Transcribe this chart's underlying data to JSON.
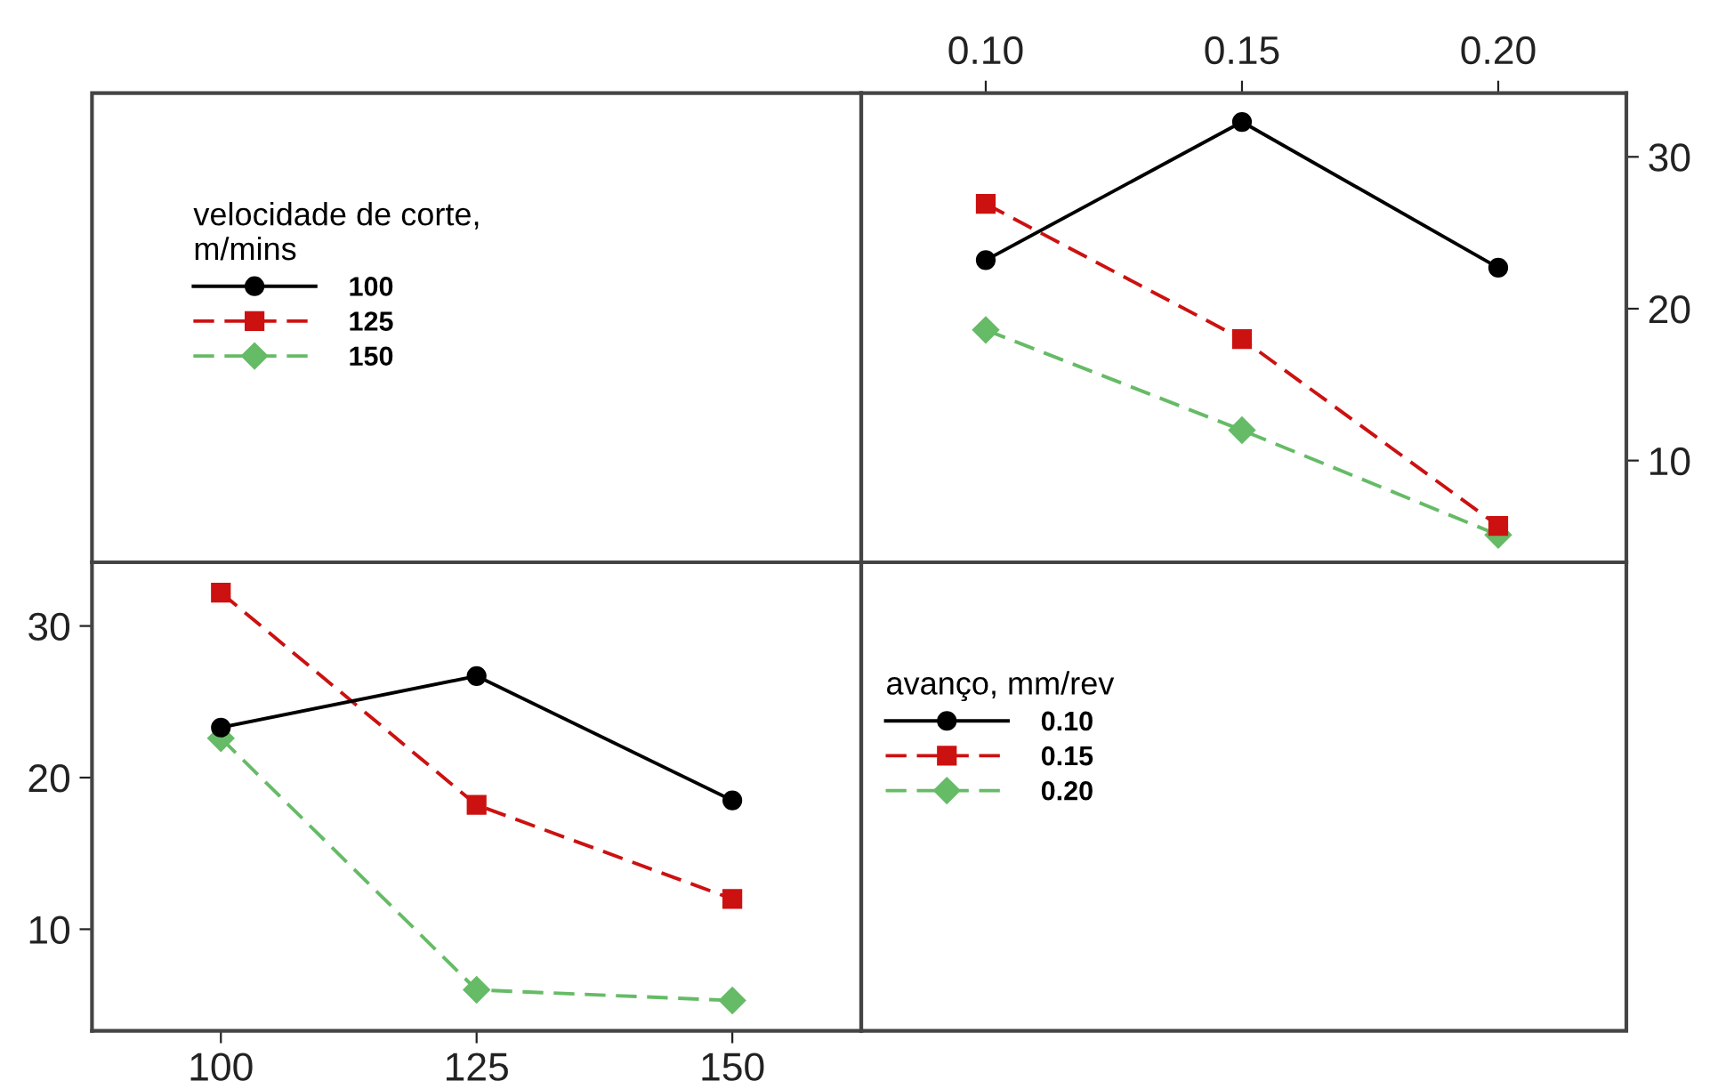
{
  "chart_data": [
    {
      "type": "line",
      "legend_title": "velocidade de corte,\nm/mins",
      "legend": "left",
      "grid": false,
      "x": [
        0.1,
        0.15,
        0.2
      ],
      "xlim": [
        0.0757,
        0.225
      ],
      "xticks": [
        {
          "value": 0.1,
          "label": "0.10"
        },
        {
          "value": 0.15,
          "label": "0.15"
        },
        {
          "value": 0.2,
          "label": "0.20"
        }
      ],
      "ylim": [
        3.3,
        34.2
      ],
      "yticks": [
        10,
        20,
        30
      ],
      "series": [
        {
          "name": "100",
          "color": "#000000",
          "marker": "circle",
          "line_style": "solid",
          "values": [
            23.2,
            32.3,
            22.7
          ]
        },
        {
          "name": "125",
          "color": "#cc1111",
          "marker": "square",
          "line_style": "dashed",
          "values": [
            26.9,
            18.0,
            5.7
          ]
        },
        {
          "name": "150",
          "color": "#66bb66",
          "marker": "diamond",
          "line_style": "dashed",
          "values": [
            18.6,
            12.0,
            5.1
          ]
        }
      ]
    },
    {
      "type": "line",
      "legend_title": "avanço, mm/rev",
      "legend": "right",
      "grid": false,
      "x": [
        100,
        125,
        150
      ],
      "xlim": [
        87.4,
        162.6
      ],
      "xticks": [
        100,
        125,
        150
      ],
      "ylim": [
        3.3,
        34.2
      ],
      "yticks": [
        10,
        20,
        30
      ],
      "series": [
        {
          "name": "0.10",
          "color": "#000000",
          "marker": "circle",
          "line_style": "solid",
          "values": [
            23.3,
            26.7,
            18.5
          ]
        },
        {
          "name": "0.15",
          "color": "#cc1111",
          "marker": "square",
          "line_style": "dashed",
          "values": [
            32.2,
            18.2,
            12.0
          ]
        },
        {
          "name": "0.20",
          "color": "#66bb66",
          "marker": "diamond",
          "line_style": "dashed",
          "values": [
            22.6,
            6.0,
            5.3
          ]
        }
      ]
    }
  ]
}
